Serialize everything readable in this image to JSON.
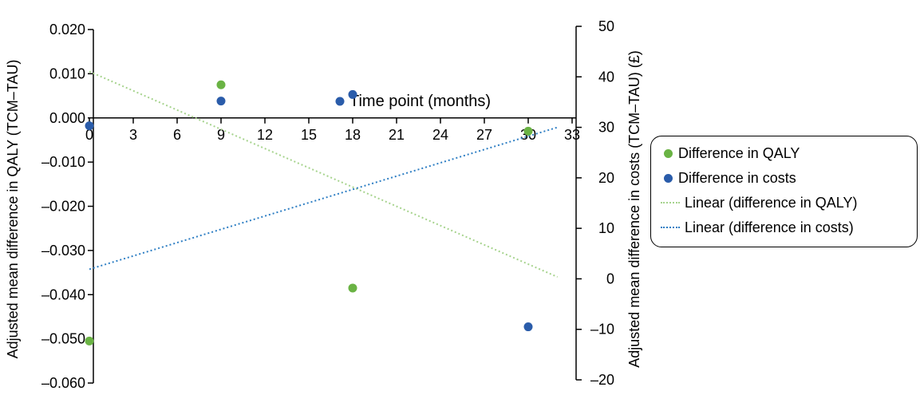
{
  "chart_data": {
    "type": "scatter",
    "x_title": "Time point (months)",
    "y_left_label": "Adjusted mean difference in QALY (TCM–TAU)",
    "y_right_label": "Adjusted mean difference in costs (TCM–TAU) (£)",
    "x_ticks": [
      "0",
      "3",
      "6",
      "9",
      "12",
      "15",
      "18",
      "21",
      "24",
      "27",
      "30",
      "33"
    ],
    "x_range": [
      0,
      33
    ],
    "y_left_ticks": [
      "0.020",
      "0.010",
      "0.000",
      "–0.010",
      "–0.020",
      "–0.030",
      "–0.040",
      "–0.050",
      "–0.060"
    ],
    "y_left_range": [
      -0.06,
      0.02
    ],
    "y_right_ticks": [
      "50",
      "40",
      "30",
      "20",
      "10",
      "0",
      "–10",
      "–20"
    ],
    "y_right_range": [
      -20,
      50
    ],
    "series": [
      {
        "name": "Difference in QALY",
        "axis": "left",
        "kind": "points",
        "color": "#6ab344",
        "points": [
          [
            0,
            -0.0505
          ],
          [
            9,
            0.0075
          ],
          [
            18,
            -0.0385
          ],
          [
            30,
            -0.003
          ]
        ]
      },
      {
        "name": "Difference in costs",
        "axis": "right",
        "kind": "points",
        "color": "#2a5caa",
        "points": [
          [
            0,
            30.3
          ],
          [
            9,
            35.2
          ],
          [
            18,
            36.5
          ],
          [
            30,
            -9.5
          ]
        ]
      },
      {
        "name": "Linear (difference in QALY)",
        "axis": "left",
        "kind": "trendline",
        "color": "#a6d38d",
        "points": [
          [
            0,
            0.0105
          ],
          [
            32,
            -0.036
          ]
        ]
      },
      {
        "name": "Linear (difference in costs)",
        "axis": "right",
        "kind": "trendline",
        "color": "#2f7fc4",
        "points": [
          [
            0,
            1.9
          ],
          [
            32,
            30.0
          ]
        ]
      }
    ],
    "legend_position": "right",
    "grid": false
  }
}
